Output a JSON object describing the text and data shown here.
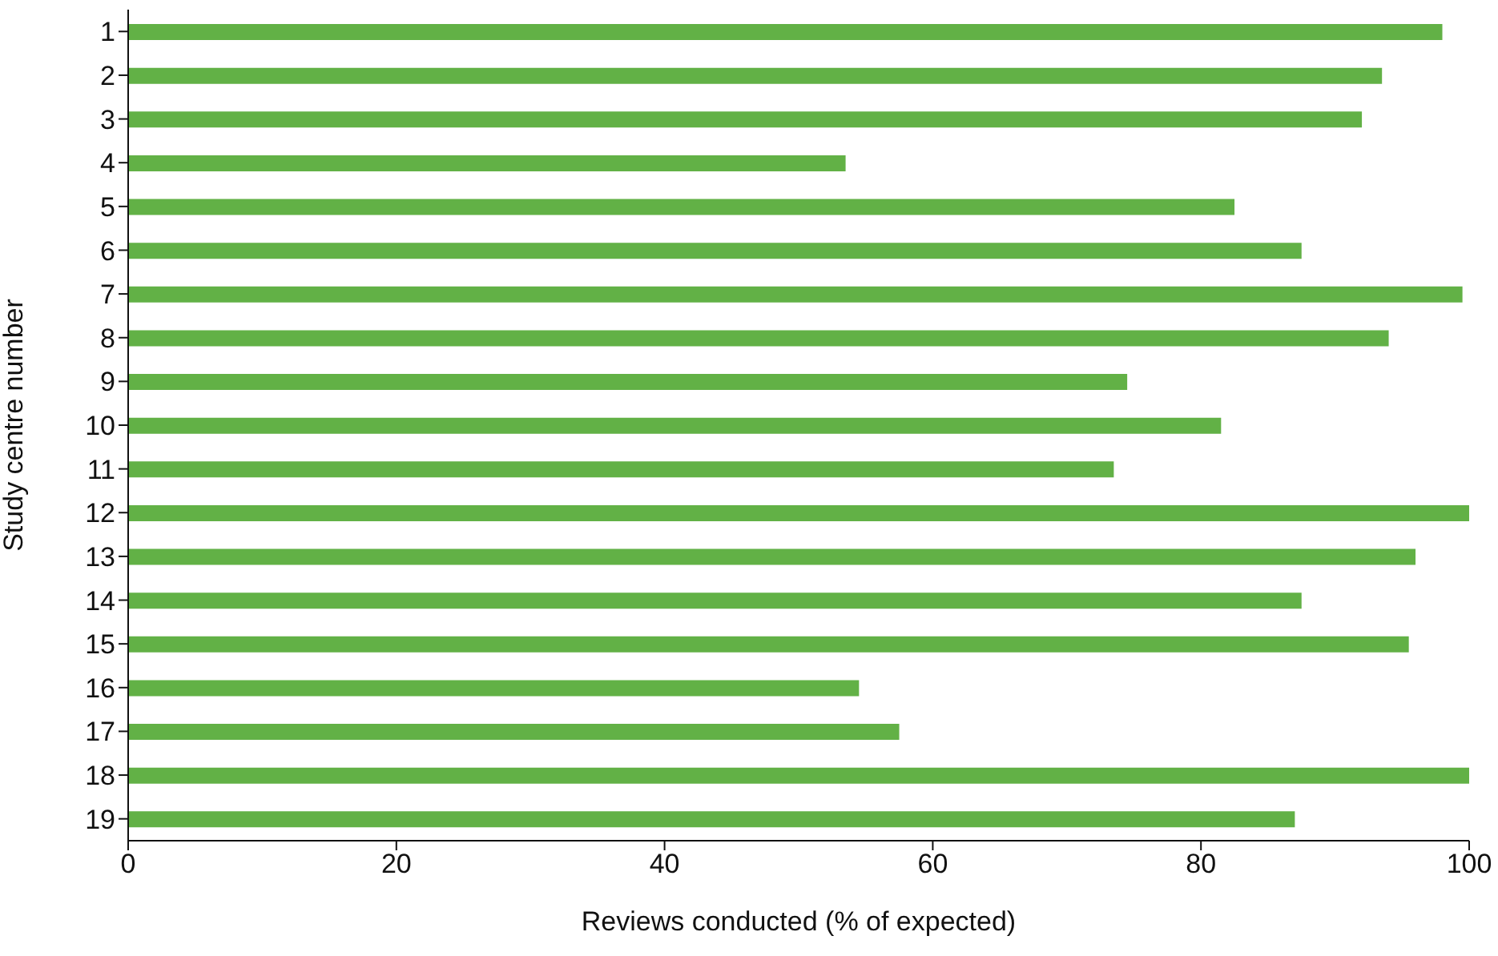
{
  "chart_data": {
    "type": "bar",
    "orientation": "horizontal",
    "xlabel": "Reviews conducted (% of expected)",
    "ylabel": "Study centre number",
    "categories": [
      "1",
      "2",
      "3",
      "4",
      "5",
      "6",
      "7",
      "8",
      "9",
      "10",
      "11",
      "12",
      "13",
      "14",
      "15",
      "16",
      "17",
      "18",
      "19"
    ],
    "values": [
      98,
      93.5,
      92,
      53.5,
      82.5,
      87.5,
      99.5,
      94,
      74.5,
      81.5,
      73.5,
      100,
      96,
      87.5,
      95.5,
      54.5,
      57.5,
      100,
      87
    ],
    "color": "#62b146",
    "xlim": [
      0,
      100
    ],
    "xticks": [
      0,
      20,
      40,
      60,
      80,
      100
    ],
    "grid": false,
    "legend": false
  }
}
